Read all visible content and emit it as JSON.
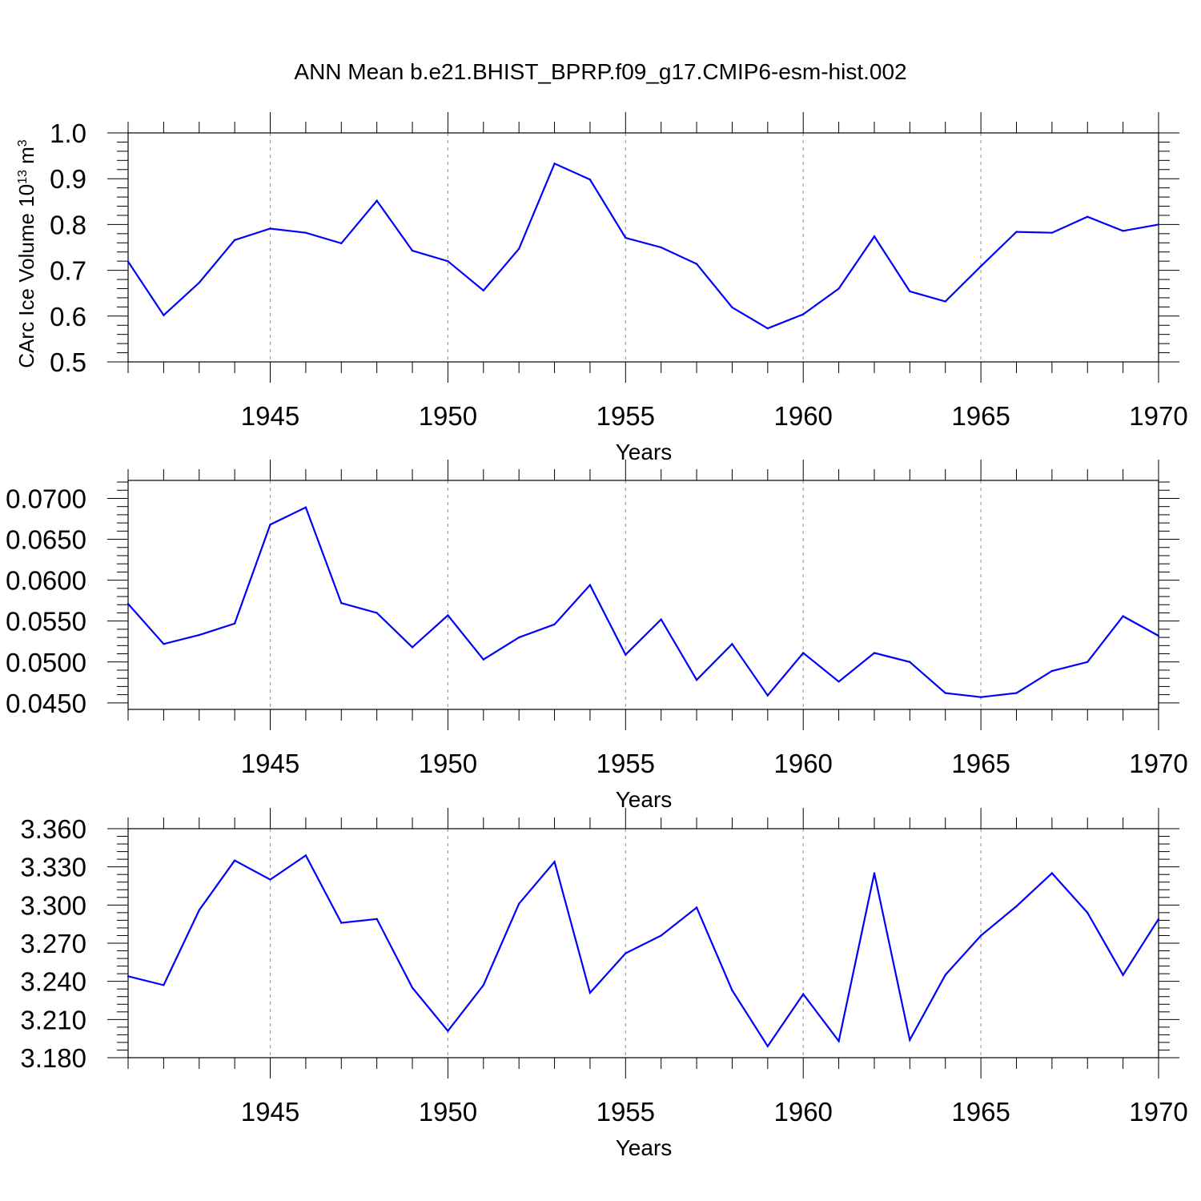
{
  "title": "ANN Mean b.e21.BHIST_BPRP.f09_g17.CMIP6-esm-hist.002",
  "colors": {
    "series": "#0000ff",
    "grid": "#a0a0a0",
    "axis": "#000000"
  },
  "chart_data": [
    {
      "type": "line",
      "title": "",
      "xlabel": "Years",
      "ylabel": "CArc Ice Volume 10",
      "ylabel_exp": "13",
      "ylabel_unit": " m",
      "ylabel_unit_exp": "3",
      "xlim": [
        1941,
        1970
      ],
      "ylim": [
        0.5,
        1.0
      ],
      "xticks": [
        "1945",
        "1950",
        "1955",
        "1960",
        "1965",
        "1970"
      ],
      "yticks": [
        "0.5",
        "0.6",
        "0.7",
        "0.8",
        "0.9",
        "1.0"
      ],
      "grid": "vertical dashed at major x ticks",
      "x": [
        1941,
        1942,
        1943,
        1944,
        1945,
        1946,
        1947,
        1948,
        1949,
        1950,
        1951,
        1952,
        1953,
        1954,
        1955,
        1956,
        1957,
        1958,
        1959,
        1960,
        1961,
        1962,
        1963,
        1964,
        1965,
        1966,
        1967,
        1968,
        1969,
        1970
      ],
      "series": [
        {
          "values": [
            0.719,
            0.602,
            0.673,
            0.766,
            0.791,
            0.782,
            0.759,
            0.852,
            0.743,
            0.72,
            0.656,
            0.747,
            0.933,
            0.898,
            0.771,
            0.75,
            0.714,
            0.619,
            0.573,
            0.604,
            0.66,
            0.774,
            0.654,
            0.632,
            0.709,
            0.784,
            0.782,
            0.817,
            0.786,
            0.8
          ]
        }
      ]
    },
    {
      "type": "line",
      "title": "",
      "xlabel": "Years",
      "ylabel": "",
      "xlim": [
        1941,
        1970
      ],
      "ylim": [
        0.0442,
        0.0722
      ],
      "xticks": [
        "1945",
        "1950",
        "1955",
        "1960",
        "1965",
        "1970"
      ],
      "yticks": [
        "0.0450",
        "0.0500",
        "0.0550",
        "0.0600",
        "0.0650",
        "0.0700"
      ],
      "grid": "vertical dashed at major x ticks",
      "x": [
        1941,
        1942,
        1943,
        1944,
        1945,
        1946,
        1947,
        1948,
        1949,
        1950,
        1951,
        1952,
        1953,
        1954,
        1955,
        1956,
        1957,
        1958,
        1959,
        1960,
        1961,
        1962,
        1963,
        1964,
        1965,
        1966,
        1967,
        1968,
        1969,
        1970
      ],
      "series": [
        {
          "values": [
            0.0571,
            0.0522,
            0.0533,
            0.0547,
            0.0668,
            0.0689,
            0.0572,
            0.056,
            0.0518,
            0.0557,
            0.0503,
            0.053,
            0.0546,
            0.0594,
            0.0509,
            0.0552,
            0.0478,
            0.0522,
            0.0459,
            0.0511,
            0.0476,
            0.0511,
            0.05,
            0.0462,
            0.0457,
            0.0462,
            0.0489,
            0.05,
            0.0556,
            0.0532
          ]
        }
      ]
    },
    {
      "type": "line",
      "title": "",
      "xlabel": "Years",
      "ylabel": "",
      "xlim": [
        1941,
        1970
      ],
      "ylim": [
        3.18,
        3.36
      ],
      "xticks": [
        "1945",
        "1950",
        "1955",
        "1960",
        "1965",
        "1970"
      ],
      "yticks": [
        "3.180",
        "3.210",
        "3.240",
        "3.270",
        "3.300",
        "3.330",
        "3.360"
      ],
      "grid": "vertical dashed at major x ticks",
      "x": [
        1941,
        1942,
        1943,
        1944,
        1945,
        1946,
        1947,
        1948,
        1949,
        1950,
        1951,
        1952,
        1953,
        1954,
        1955,
        1956,
        1957,
        1958,
        1959,
        1960,
        1961,
        1962,
        1963,
        1964,
        1965,
        1966,
        1967,
        1968,
        1969,
        1970
      ],
      "series": [
        {
          "values": [
            3.244,
            3.237,
            3.296,
            3.335,
            3.32,
            3.339,
            3.286,
            3.289,
            3.235,
            3.201,
            3.237,
            3.301,
            3.334,
            3.231,
            3.262,
            3.276,
            3.298,
            3.233,
            3.189,
            3.23,
            3.193,
            3.325,
            3.194,
            3.245,
            3.276,
            3.299,
            3.325,
            3.294,
            3.245,
            3.289
          ]
        }
      ]
    }
  ]
}
